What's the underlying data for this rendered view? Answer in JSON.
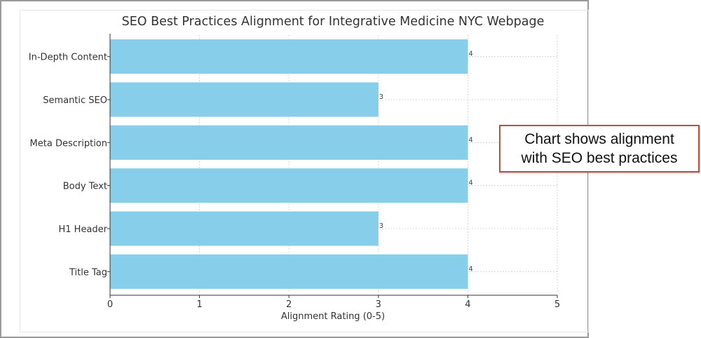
{
  "chart_data": {
    "type": "bar",
    "orientation": "horizontal",
    "title": "SEO Best Practices Alignment for Integrative Medicine NYC Webpage",
    "xlabel": "Alignment Rating (0-5)",
    "ylabel": "",
    "categories": [
      "In-Depth Content",
      "Semantic SEO",
      "Meta Description",
      "Body Text",
      "H1 Header",
      "Title Tag"
    ],
    "values": [
      4,
      3,
      4,
      4,
      3,
      4
    ],
    "data_labels": [
      "4",
      "3",
      "4",
      "4",
      "3",
      "4"
    ],
    "xlim": [
      0,
      5
    ],
    "xticks": [
      "0",
      "1",
      "2",
      "3",
      "4",
      "5"
    ],
    "grid": true,
    "bar_color": "#87ceeb"
  },
  "annotation": {
    "line1": "Chart shows alignment",
    "line2": "with SEO best practices",
    "border_color": "#b5533f"
  }
}
